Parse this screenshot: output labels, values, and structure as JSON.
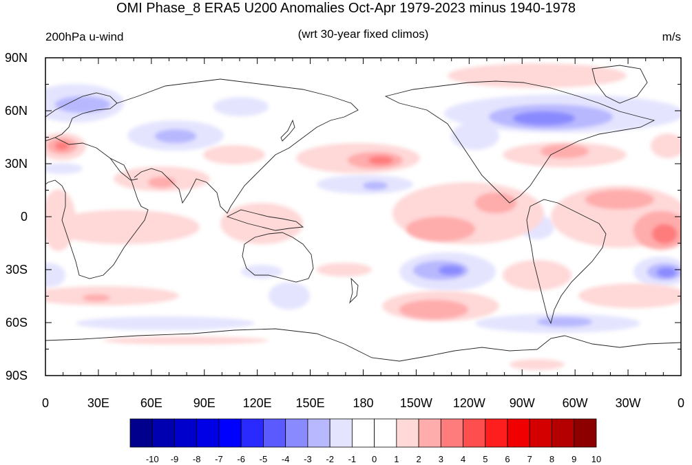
{
  "title": "OMI Phase_8 ERA5 U200 Anomalies Oct-Apr 1979-2023 minus 1940-1978",
  "left_string": "200hPa u-wind",
  "center_string": "(wrt 30-year fixed climos)",
  "right_string": "m/s",
  "map": {
    "projection": "cylindrical-equidistant",
    "lon_range": [
      0,
      360
    ],
    "lat_range": [
      -90,
      90
    ],
    "lat_labels": [
      {
        "lat": 90,
        "label": "90N"
      },
      {
        "lat": 60,
        "label": "60N"
      },
      {
        "lat": 30,
        "label": "30N"
      },
      {
        "lat": 0,
        "label": "0"
      },
      {
        "lat": -30,
        "label": "30S"
      },
      {
        "lat": -60,
        "label": "60S"
      },
      {
        "lat": -90,
        "label": "90S"
      }
    ],
    "lon_labels": [
      {
        "lon": 0,
        "label": "0"
      },
      {
        "lon": 30,
        "label": "30E"
      },
      {
        "lon": 60,
        "label": "60E"
      },
      {
        "lon": 90,
        "label": "90E"
      },
      {
        "lon": 120,
        "label": "120E"
      },
      {
        "lon": 150,
        "label": "150E"
      },
      {
        "lon": 180,
        "label": "180"
      },
      {
        "lon": 210,
        "label": "150W"
      },
      {
        "lon": 240,
        "label": "120W"
      },
      {
        "lon": 270,
        "label": "90W"
      },
      {
        "lon": 300,
        "label": "60W"
      },
      {
        "lon": 330,
        "label": "30W"
      },
      {
        "lon": 360,
        "label": "0"
      }
    ]
  },
  "colorbar": {
    "labels": [
      "-10",
      "-9",
      "-8",
      "-7",
      "-6",
      "-5",
      "-4",
      "-3",
      "-2",
      "-1",
      "0",
      "1",
      "2",
      "3",
      "4",
      "5",
      "6",
      "7",
      "8",
      "9",
      "10"
    ],
    "colors": [
      "#00008c",
      "#0000b0",
      "#0000cc",
      "#0000e6",
      "#0000ff",
      "#2a2aff",
      "#5a5aff",
      "#8a8aff",
      "#b8b8ff",
      "#e4e4ff",
      "#ffffff",
      "#ffffff",
      "#ffd8d8",
      "#ffacac",
      "#ff7c7c",
      "#ff4e4e",
      "#ff1e1e",
      "#f00000",
      "#d40000",
      "#b40000",
      "#8c0000"
    ]
  }
}
